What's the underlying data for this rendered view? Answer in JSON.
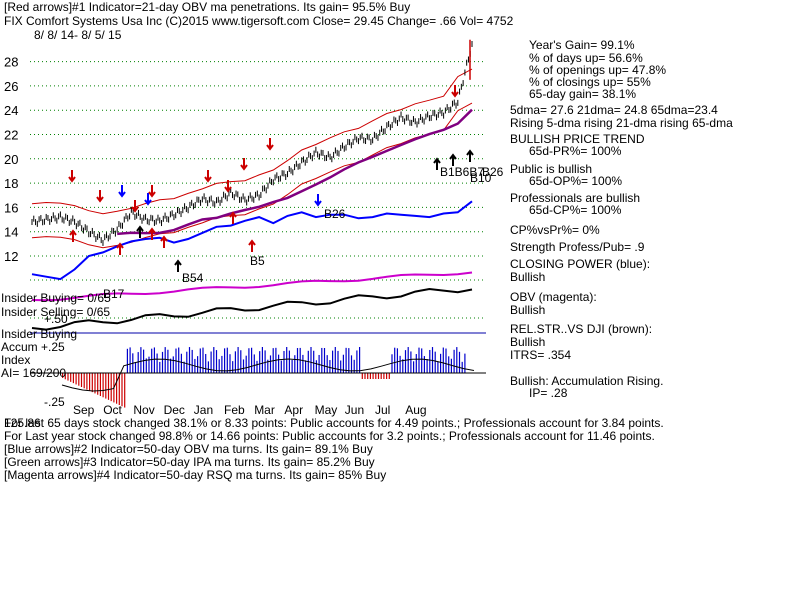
{
  "header": {
    "line1": "[Red arrows]#1 Indicator=21-day OBV ma penetrations.  Its gain= 95.5% Buy",
    "ticker_line": "FIX   Comfort Systems Usa Inc  (C)2015 www.tigersoft.com     Close=  29.45   Change= .66 Vol= 4752",
    "date_range": "8/ 8/ 14-  8/ 5/ 15"
  },
  "right_panel": {
    "years_gain": "Year's Gain= 99.1%",
    "days_up": "% of days up= 56.6%",
    "openings_up": "% of openings up= 47.8%",
    "closings_up": "% of closings up= 55%",
    "gain_65": "65-day gain= 38.1%",
    "dma": "5dma= 27.6  21dma= 24.8  65dma=23.4",
    "rising": "Rising 5-dma  rising 21-dma  rising 65-dma",
    "trend_title": "BULLISH PRICE TREND",
    "trend_val": "65d-PR%= 100%",
    "public_title": "Public is bullish",
    "public_val": "65d-OP%= 100%",
    "pros_title": "Professionals are bullish",
    "pros_val": "65d-CP%= 100%",
    "cpvspr": "CP%vsPr%=  0%",
    "strength": "Strength Profess/Pub= .9",
    "closing_power": "CLOSING POWER (blue):",
    "closing_power_val": "Bullish",
    "obv": "OBV (magenta):",
    "obv_val": "Bullish",
    "relstr": "REL.STR..VS DJI (brown):",
    "relstr_val": "Bullish",
    "itrs": "ITRS= .354",
    "accum": "Bullish: Accumulation Rising.",
    "ip": "IP=  .28"
  },
  "left_labels": {
    "insider_buying_count": "Insider Buying= 0/65",
    "insider_selling_count": "Insider Selling= 0/65",
    "insider_buying": "Insider Buying",
    "accum_top": "Accum +.25",
    "accum_index": "Index",
    "ai": "AI= 169/200",
    "accum_plus50": "+.50",
    "accum_minus25": "-.25"
  },
  "bottom_lines": {
    "line1": "For last 65 days stock changed  38.1% or  8.33 points:  Public accounts for  4.49 points.;  Professionals account for  3.84 points.",
    "line1_prefix": "125.86",
    "line2": "For Last year stock changed  98.8% or  14.66 points:  Public accounts for  3.2 points.;  Professionals account for  11.46 points.",
    "line3": "[Blue arrows]#2 Indicator=50-day OBV ma turns.  Its gain= 89.1% Buy",
    "line4": "[Green arrows]#3 Indicator=50-day IPA ma turns.  Its gain= 85.2% Buy",
    "line5": "[Magenta arrows]#4 Indicator=50-day RSQ ma turns.  Its gain= 85% Buy"
  },
  "chart_markers": {
    "b17": "B17",
    "b54": "B54",
    "b5": "B5",
    "b26": "B26",
    "b1b6b7": "B1B6B7",
    "b26b": "B26",
    "b10": "B10"
  },
  "chart_data": {
    "type": "line",
    "title": "FIX  Comfort Systems Usa Inc",
    "x_ticks": [
      "Sep",
      "Oct",
      "Nov",
      "Dec",
      "Jan",
      "Feb",
      "Mar",
      "Apr",
      "May",
      "Jun",
      "Jul",
      "Aug"
    ],
    "y_ticks": [
      12,
      14,
      16,
      18,
      20,
      22,
      24,
      26,
      28
    ],
    "ylim": [
      10.5,
      30
    ],
    "series": [
      {
        "name": "Price",
        "color": "#000000",
        "values": [
          14.8,
          15.0,
          15.2,
          14.8,
          14.0,
          13.3,
          14.2,
          15.6,
          15.0,
          14.9,
          15.4,
          16.0,
          16.7,
          16.4,
          17.2,
          16.6,
          17.0,
          18.3,
          18.8,
          19.7,
          20.5,
          20.1,
          21.0,
          21.7,
          21.6,
          22.6,
          23.4,
          23.0,
          23.5,
          23.8,
          24.7,
          29.45
        ]
      },
      {
        "name": "Closing Power",
        "color": "#0000ff",
        "values": [
          10.5,
          10.3,
          10.1,
          10.9,
          12.0,
          12.3,
          12.8,
          13.2,
          13.4,
          13.5,
          13.1,
          13.4,
          13.9,
          14.4,
          14.5,
          14.9,
          15.2,
          14.7,
          15.3,
          15.6,
          15.2,
          15.4,
          15.4,
          15.1,
          15.2,
          15.5,
          15.4,
          15.3,
          15.2,
          15.5,
          15.6,
          16.5
        ]
      }
    ]
  },
  "colors": {
    "price": "#000000",
    "closing_power": "#0000ff",
    "obv": "#cc00cc",
    "rel_strength": "#000000",
    "band": "#cc0000",
    "ma65": "#800080",
    "accum_pos": "#0000cc",
    "accum_neg": "#cc0000",
    "grid": "#008000"
  }
}
